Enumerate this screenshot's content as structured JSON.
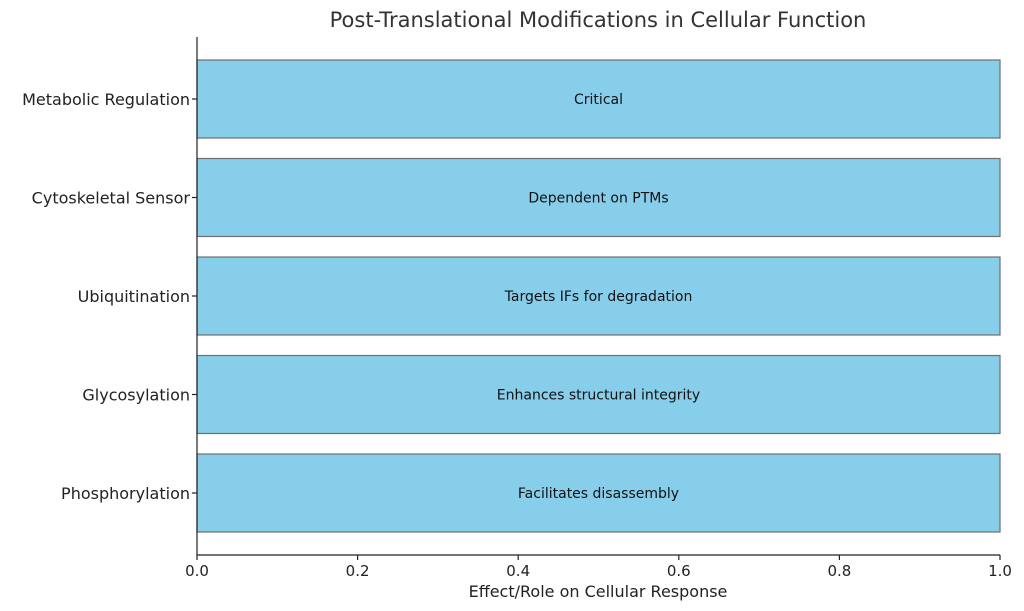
{
  "chart_data": {
    "type": "bar",
    "orientation": "horizontal",
    "title": "Post-Translational Modifications in Cellular Function",
    "xlabel": "Effect/Role on Cellular Response",
    "ylabel": "",
    "xlim": [
      0,
      1
    ],
    "xticks": [
      "0.0",
      "0.2",
      "0.4",
      "0.6",
      "0.8",
      "1.0"
    ],
    "grid": false,
    "bar_color": "#87ceeb",
    "bars": [
      {
        "category": "Metabolic Regulation",
        "value": 1.0,
        "label": "Critical"
      },
      {
        "category": "Cytoskeletal Sensor",
        "value": 1.0,
        "label": "Dependent on PTMs"
      },
      {
        "category": "Ubiquitination",
        "value": 1.0,
        "label": "Targets IFs for degradation"
      },
      {
        "category": "Glycosylation",
        "value": 1.0,
        "label": "Enhances structural integrity"
      },
      {
        "category": "Phosphorylation",
        "value": 1.0,
        "label": "Facilitates disassembly"
      }
    ]
  }
}
